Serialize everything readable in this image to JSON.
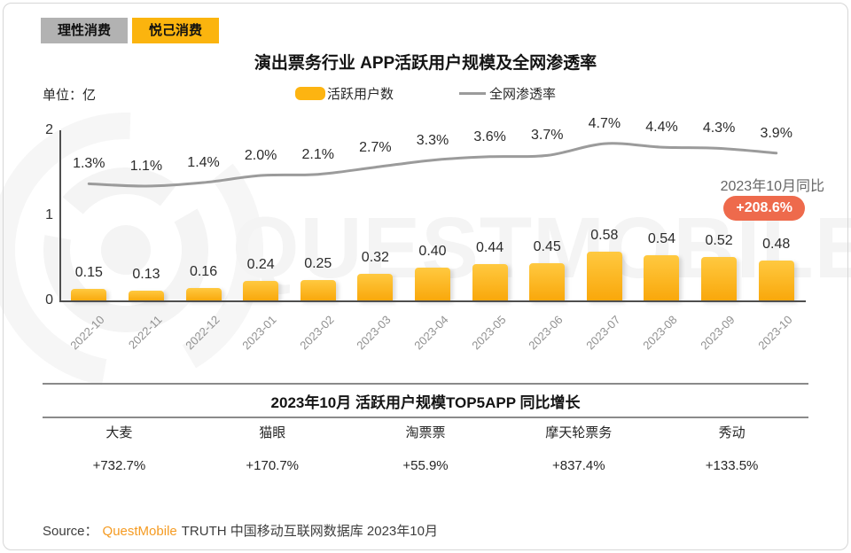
{
  "tabs": [
    {
      "label": "理性消费",
      "active": false
    },
    {
      "label": "悦己消费",
      "active": true
    }
  ],
  "header": {
    "title": "演出票务行业 APP活跃用户规模及全网渗透率",
    "unit_label": "单位：亿"
  },
  "legend": {
    "bars": "活跃用户数",
    "line": "全网渗透率"
  },
  "annotation": {
    "label": "2023年10月同比",
    "badge": "+208.6%"
  },
  "chart_data": {
    "type": "bar+line",
    "categories": [
      "2022-10",
      "2022-11",
      "2022-12",
      "2023-01",
      "2023-02",
      "2023-03",
      "2023-04",
      "2023-05",
      "2023-06",
      "2023-07",
      "2023-08",
      "2023-09",
      "2023-10"
    ],
    "series": [
      {
        "name": "活跃用户数",
        "type": "bar",
        "unit": "亿",
        "values": [
          0.15,
          0.13,
          0.16,
          0.24,
          0.25,
          0.32,
          0.4,
          0.44,
          0.45,
          0.58,
          0.54,
          0.52,
          0.48
        ],
        "labels": [
          "0.15",
          "0.13",
          "0.16",
          "0.24",
          "0.25",
          "0.32",
          "0.40",
          "0.44",
          "0.45",
          "0.58",
          "0.54",
          "0.52",
          "0.48"
        ]
      },
      {
        "name": "全网渗透率",
        "type": "line",
        "unit": "%",
        "values": [
          1.3,
          1.1,
          1.4,
          2.0,
          2.1,
          2.7,
          3.3,
          3.6,
          3.7,
          4.7,
          4.4,
          4.3,
          3.9
        ],
        "labels": [
          "1.3%",
          "1.1%",
          "1.4%",
          "2.0%",
          "2.1%",
          "2.7%",
          "3.3%",
          "3.6%",
          "3.7%",
          "4.7%",
          "4.4%",
          "4.3%",
          "3.9%"
        ]
      }
    ],
    "y_axis": {
      "ticks": [
        "0",
        "1",
        "2"
      ],
      "min": 0,
      "max": 2
    },
    "grid": false,
    "legend_position": "top"
  },
  "table": {
    "title": "2023年10月 活跃用户规模TOP5APP 同比增长",
    "columns": [
      {
        "app": "大麦",
        "growth": "+732.7%"
      },
      {
        "app": "猫眼",
        "growth": "+170.7%"
      },
      {
        "app": "淘票票",
        "growth": "+55.9%"
      },
      {
        "app": "摩天轮票务",
        "growth": "+837.4%"
      },
      {
        "app": "秀动",
        "growth": "+133.5%"
      }
    ]
  },
  "source": {
    "prefix": "Source：",
    "brand": "QuestMobile",
    "text": "TRUTH 中国移动互联网数据库 2023年10月"
  },
  "watermark": {
    "text": "QUESTMOBILE"
  },
  "colors": {
    "bar_top": "#FFC940",
    "bar_bottom": "#F9A70A",
    "line": "#9B9B9B",
    "tab_active_bg": "#FBB40E",
    "tab_inactive_bg": "#B2B2B2",
    "badge_bg": "#EE6A4C",
    "brand_orange": "#F59B22"
  }
}
